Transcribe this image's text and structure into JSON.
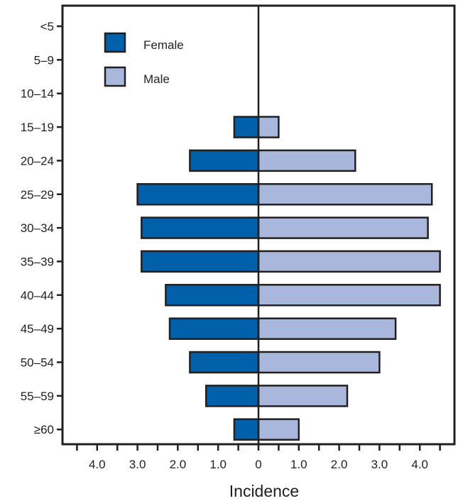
{
  "chart_data": {
    "type": "bar",
    "orientation": "horizontal",
    "layout": "population-pyramid",
    "xlabel": "Incidence",
    "x_ticks": [
      {
        "value": -4,
        "label": "4.0"
      },
      {
        "value": -3,
        "label": "3.0"
      },
      {
        "value": -2,
        "label": "2.0"
      },
      {
        "value": -1,
        "label": "1.0"
      },
      {
        "value": 0,
        "label": "0"
      },
      {
        "value": 1,
        "label": "1.0"
      },
      {
        "value": 2,
        "label": "2.0"
      },
      {
        "value": 3,
        "label": "3.0"
      },
      {
        "value": 4,
        "label": "4.0"
      }
    ],
    "xlim": [
      -4.9,
      4.6
    ],
    "categories": [
      "<5",
      "5–9",
      "10–14",
      "15–19",
      "20–24",
      "25–29",
      "30–34",
      "35–39",
      "40–44",
      "45–49",
      "50–54",
      "55–59",
      "≥60"
    ],
    "series": [
      {
        "name": "Female",
        "side": "left",
        "color": "#0060a9",
        "values": [
          0,
          0,
          0,
          0.6,
          1.7,
          3.0,
          2.9,
          2.9,
          2.3,
          2.2,
          1.7,
          1.3,
          0.6
        ]
      },
      {
        "name": "Male",
        "side": "right",
        "color": "#a9b7dd",
        "values": [
          0,
          0,
          0,
          0.5,
          2.4,
          4.3,
          4.2,
          4.5,
          4.5,
          3.4,
          3.0,
          2.2,
          1.0
        ]
      }
    ],
    "legend": {
      "position": "top-left"
    },
    "grid": false
  }
}
